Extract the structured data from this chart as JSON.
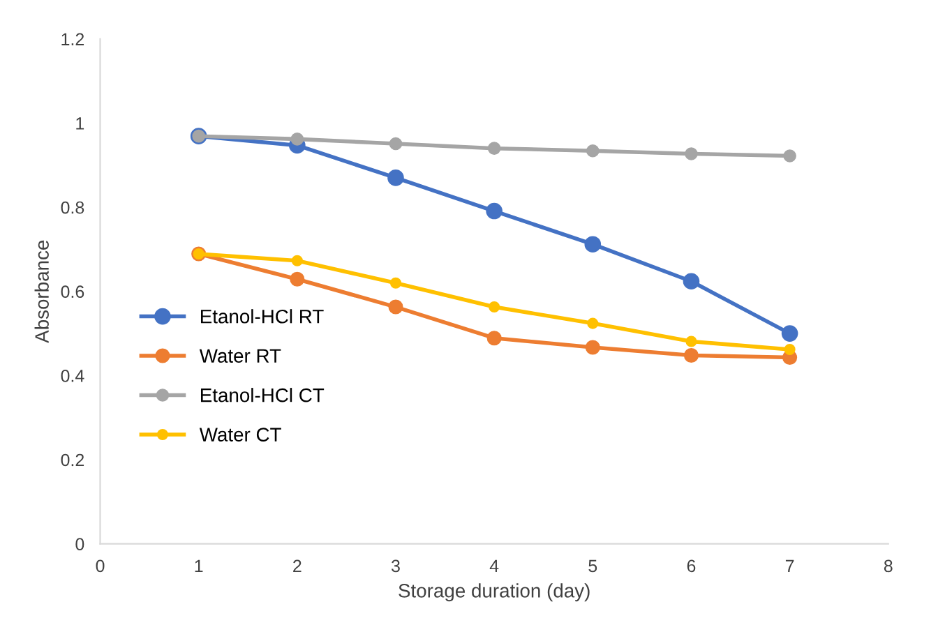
{
  "chart_data": {
    "type": "line",
    "xlabel": "Storage duration (day)",
    "ylabel": "Absorbance",
    "x": [
      1,
      2,
      3,
      4,
      5,
      6,
      7
    ],
    "series": [
      {
        "name": "Etanol-HCl RT",
        "color": "#4472c4",
        "values": [
          0.969,
          0.947,
          0.87,
          0.791,
          0.712,
          0.624,
          0.5
        ]
      },
      {
        "name": "Water RT",
        "color": "#ed7d31",
        "values": [
          0.689,
          0.629,
          0.563,
          0.489,
          0.467,
          0.448,
          0.443
        ]
      },
      {
        "name": "Etanol-HCl CT",
        "color": "#a5a5a5",
        "values": [
          0.969,
          0.962,
          0.951,
          0.94,
          0.934,
          0.927,
          0.922
        ]
      },
      {
        "name": "Water CT",
        "color": "#ffc000",
        "values": [
          0.689,
          0.673,
          0.62,
          0.563,
          0.524,
          0.481,
          0.462
        ]
      }
    ],
    "xlim": [
      0,
      8
    ],
    "xticks": [
      0,
      1,
      2,
      3,
      4,
      5,
      6,
      7,
      8
    ],
    "ylim": [
      0,
      1.2
    ],
    "yticks": [
      0,
      0.2,
      0.4,
      0.6,
      0.8,
      1,
      1.2
    ],
    "grid": false,
    "legend": "left",
    "marker": "circle",
    "line_style": "solid"
  }
}
